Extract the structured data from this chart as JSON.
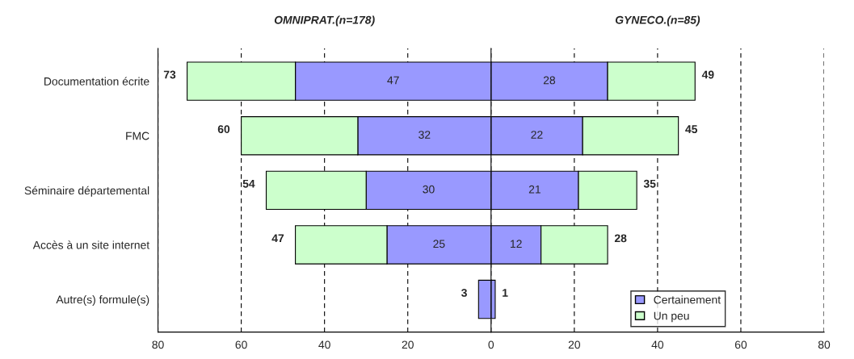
{
  "chart_data": [
    {
      "type": "bar",
      "orientation": "horizontal",
      "stacked": true,
      "title": "OMNIPRAT.(n=178)",
      "categories": [
        "Documentation écrite",
        "FMC",
        "Séminaire départemental",
        "Accès à un site internet",
        "Autre(s) formule(s)"
      ],
      "series": [
        {
          "color": "#9999ff",
          "values": [
            47,
            32,
            30,
            25,
            3
          ],
          "value_labels": [
            "47",
            "32",
            "30",
            "25",
            null
          ]
        },
        {
          "color": "#ccffcc",
          "values": [
            26,
            28,
            24,
            22,
            null
          ]
        }
      ],
      "totals": [
        "73",
        "60",
        "54",
        "47",
        "3"
      ],
      "xlim": [
        80,
        0
      ],
      "xticks": [
        80,
        60,
        40,
        20
      ],
      "grid": "x"
    },
    {
      "type": "bar",
      "orientation": "horizontal",
      "stacked": true,
      "title": "GYNECO.(n=85)",
      "series": [
        {
          "name": "Certainement",
          "color": "#9999ff",
          "values": [
            28,
            22,
            21,
            12,
            1
          ],
          "value_labels": [
            "28",
            "22",
            "21",
            "12",
            null
          ]
        },
        {
          "name": "Un peu",
          "color": "#ccffcc",
          "values": [
            21,
            23,
            14,
            16,
            null
          ]
        }
      ],
      "totals": [
        "49",
        "45",
        "35",
        "28",
        "1"
      ],
      "xlim": [
        0,
        80
      ],
      "xticks": [
        0,
        20,
        40,
        60,
        80
      ],
      "grid": "x",
      "tick_labels": "x",
      "legend": "bottom right"
    }
  ]
}
